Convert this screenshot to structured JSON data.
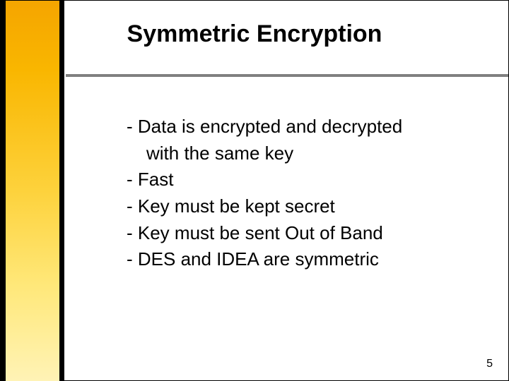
{
  "slide": {
    "title": "Symmetric Encryption",
    "bullets": {
      "l1": "- Data is encrypted and decrypted",
      "l2": "with the same key",
      "l3": "- Fast",
      "l4": "- Key must be kept secret",
      "l5": "- Key must be sent Out of Band",
      "l6": "- DES and IDEA are symmetric"
    },
    "page_number": "5"
  },
  "style": {
    "background_color": "#ffffff",
    "slide_border_color": "#000000",
    "sidebar_border_color": "#000000",
    "sidebar_gradient_top": "#f5a500",
    "sidebar_gradient_bottom": "#fff3b6",
    "divider_color": "#808080",
    "title_fontsize": 34,
    "title_weight": "bold",
    "body_fontsize": 26,
    "body_color": "#000000",
    "page_number_fontsize": 16,
    "page_number_color": "#000000",
    "font_family": "Arial"
  }
}
